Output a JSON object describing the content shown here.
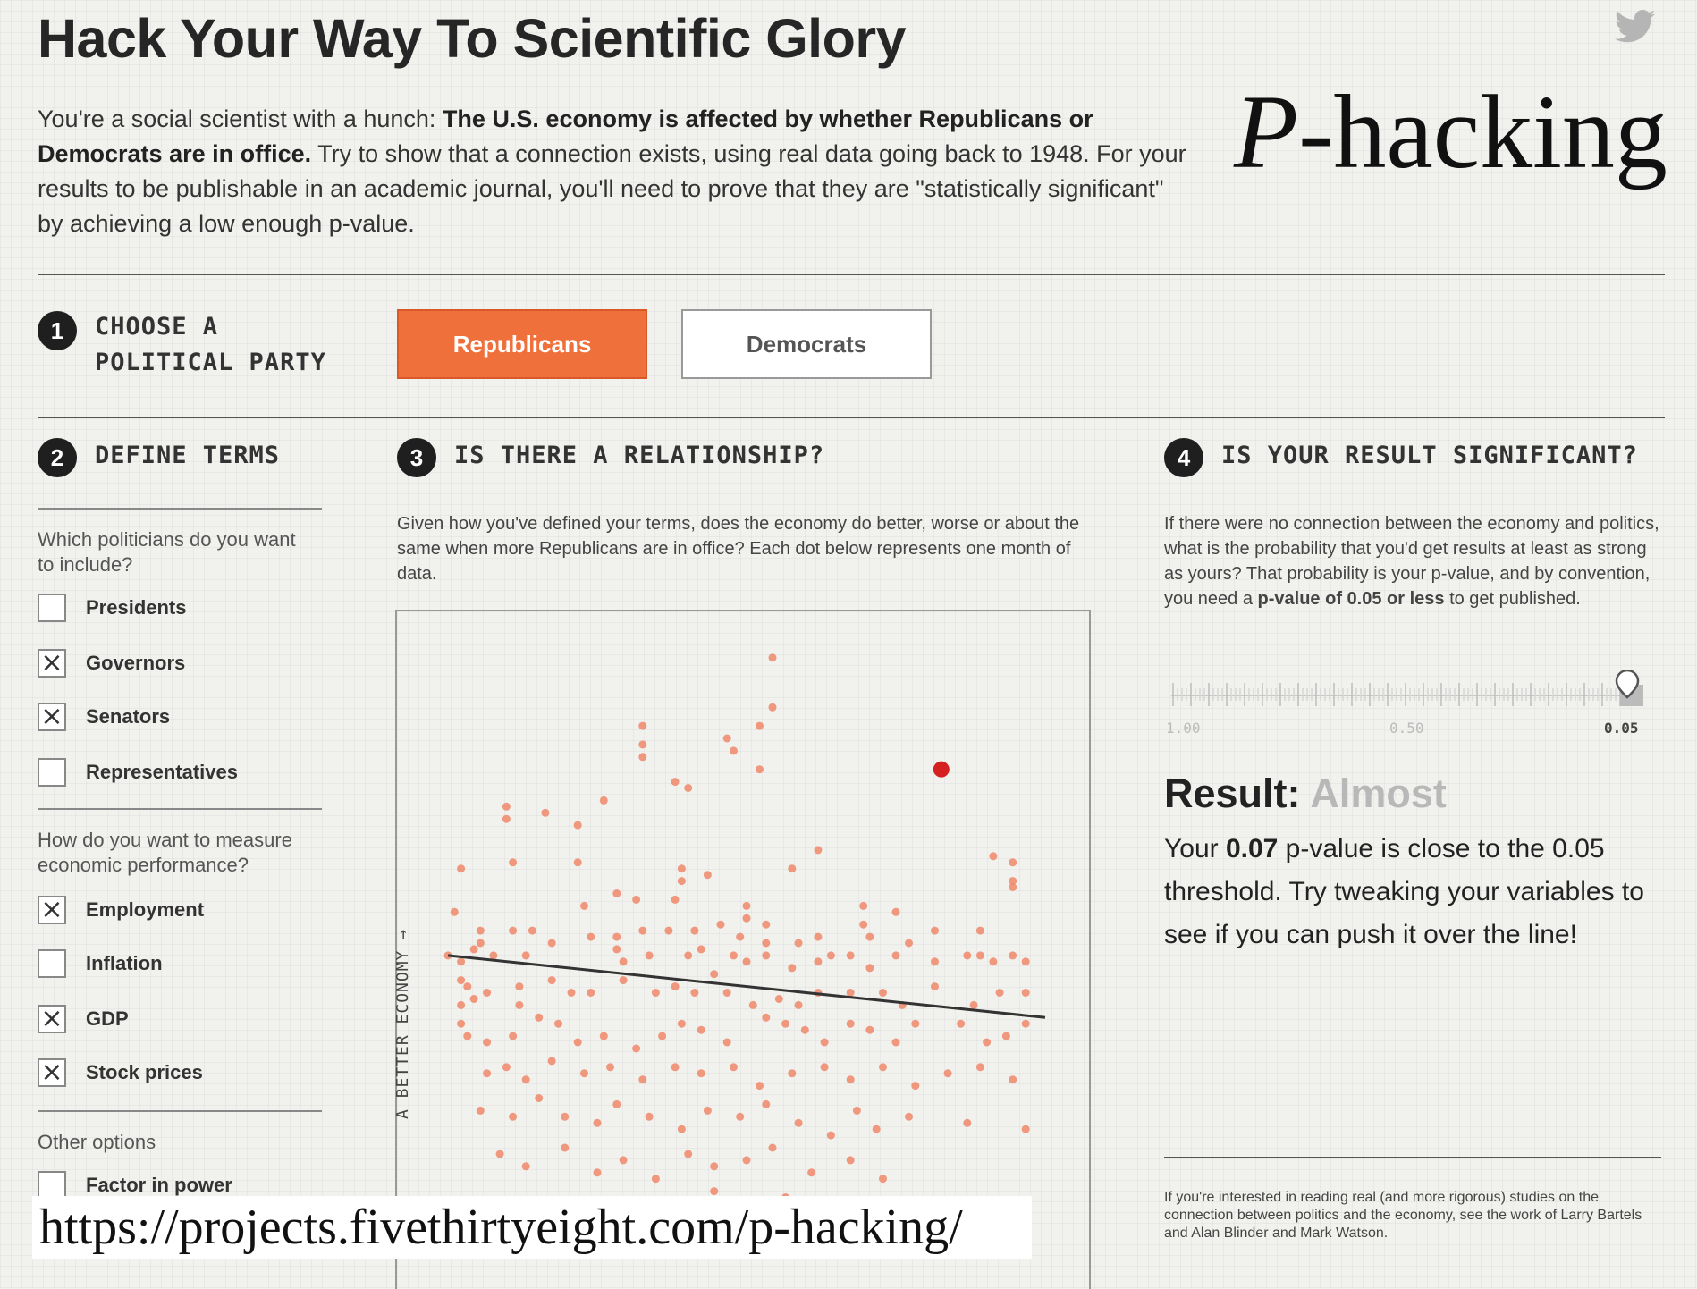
{
  "header": {
    "title": "Hack Your Way To Scientific Glory",
    "brand_italic": "P",
    "brand_rest": "-hacking",
    "intro": {
      "lead": "You're a social scientist with a hunch: ",
      "bold": "The U.S. economy is affected by whether Republicans or Democrats are in office.",
      "rest": " Try to show that a connection exists, using real data going back to 1948. For your results to be publishable in an academic journal, you'll need to prove that they are \"statistically significant\" by achieving a low enough p-value."
    }
  },
  "step1": {
    "number": "1",
    "label_line1": "CHOOSE A",
    "label_line2": "POLITICAL PARTY",
    "party_buttons": [
      "Republicans",
      "Democrats"
    ],
    "selected": "Republicans"
  },
  "step2": {
    "number": "2",
    "label": "DEFINE TERMS",
    "politicians_question": "Which politicians do you want to include?",
    "politicians": [
      {
        "label": "Presidents",
        "checked": false
      },
      {
        "label": "Governors",
        "checked": true
      },
      {
        "label": "Senators",
        "checked": true
      },
      {
        "label": "Representatives",
        "checked": false
      }
    ],
    "measure_question": "How do you want to measure economic performance?",
    "measures": [
      {
        "label": "Employment",
        "checked": true
      },
      {
        "label": "Inflation",
        "checked": false
      },
      {
        "label": "GDP",
        "checked": true
      },
      {
        "label": "Stock prices",
        "checked": true
      }
    ],
    "other_label": "Other options",
    "other_options": [
      {
        "label": "Factor in power",
        "checked": false
      }
    ]
  },
  "step3": {
    "number": "3",
    "label": "IS THERE A RELATIONSHIP?",
    "description": "Given how you've defined your terms, does the economy do better, worse or about the same when more Republicans are in office? Each dot below represents one month of data."
  },
  "chart_data": {
    "type": "scatter",
    "ylabel": "A BETTER ECONOMY →",
    "point_color": "#f0886a",
    "highlight_color": "#d42020",
    "line_color": "#333333",
    "trend": {
      "start": [
        0.04,
        0.52
      ],
      "end": [
        0.96,
        0.62
      ]
    },
    "highlight": [
      0.8,
      0.22
    ],
    "points": [
      [
        0.54,
        0.04
      ],
      [
        0.54,
        0.12
      ],
      [
        0.52,
        0.15
      ],
      [
        0.34,
        0.15
      ],
      [
        0.34,
        0.18
      ],
      [
        0.34,
        0.2
      ],
      [
        0.47,
        0.17
      ],
      [
        0.39,
        0.24
      ],
      [
        0.41,
        0.25
      ],
      [
        0.28,
        0.27
      ],
      [
        0.24,
        0.31
      ],
      [
        0.13,
        0.28
      ],
      [
        0.13,
        0.3
      ],
      [
        0.19,
        0.29
      ],
      [
        0.48,
        0.19
      ],
      [
        0.52,
        0.22
      ],
      [
        0.24,
        0.37
      ],
      [
        0.06,
        0.38
      ],
      [
        0.14,
        0.37
      ],
      [
        0.57,
        0.38
      ],
      [
        0.61,
        0.35
      ],
      [
        0.44,
        0.39
      ],
      [
        0.4,
        0.4
      ],
      [
        0.4,
        0.38
      ],
      [
        0.88,
        0.36
      ],
      [
        0.91,
        0.37
      ],
      [
        0.91,
        0.4
      ],
      [
        0.91,
        0.41
      ],
      [
        0.3,
        0.42
      ],
      [
        0.25,
        0.44
      ],
      [
        0.39,
        0.43
      ],
      [
        0.33,
        0.43
      ],
      [
        0.5,
        0.44
      ],
      [
        0.5,
        0.46
      ],
      [
        0.53,
        0.47
      ],
      [
        0.68,
        0.44
      ],
      [
        0.68,
        0.47
      ],
      [
        0.73,
        0.45
      ],
      [
        0.05,
        0.45
      ],
      [
        0.09,
        0.48
      ],
      [
        0.09,
        0.5
      ],
      [
        0.14,
        0.48
      ],
      [
        0.17,
        0.48
      ],
      [
        0.2,
        0.5
      ],
      [
        0.26,
        0.49
      ],
      [
        0.3,
        0.49
      ],
      [
        0.34,
        0.48
      ],
      [
        0.38,
        0.48
      ],
      [
        0.42,
        0.48
      ],
      [
        0.46,
        0.47
      ],
      [
        0.49,
        0.49
      ],
      [
        0.53,
        0.5
      ],
      [
        0.58,
        0.5
      ],
      [
        0.61,
        0.49
      ],
      [
        0.63,
        0.52
      ],
      [
        0.69,
        0.49
      ],
      [
        0.75,
        0.5
      ],
      [
        0.79,
        0.48
      ],
      [
        0.86,
        0.48
      ],
      [
        0.04,
        0.52
      ],
      [
        0.06,
        0.53
      ],
      [
        0.08,
        0.51
      ],
      [
        0.11,
        0.52
      ],
      [
        0.16,
        0.52
      ],
      [
        0.3,
        0.51
      ],
      [
        0.31,
        0.53
      ],
      [
        0.35,
        0.52
      ],
      [
        0.41,
        0.52
      ],
      [
        0.43,
        0.51
      ],
      [
        0.45,
        0.55
      ],
      [
        0.48,
        0.52
      ],
      [
        0.5,
        0.53
      ],
      [
        0.53,
        0.52
      ],
      [
        0.57,
        0.54
      ],
      [
        0.61,
        0.53
      ],
      [
        0.66,
        0.52
      ],
      [
        0.69,
        0.54
      ],
      [
        0.73,
        0.52
      ],
      [
        0.79,
        0.53
      ],
      [
        0.84,
        0.52
      ],
      [
        0.86,
        0.52
      ],
      [
        0.88,
        0.53
      ],
      [
        0.91,
        0.52
      ],
      [
        0.93,
        0.53
      ],
      [
        0.06,
        0.56
      ],
      [
        0.07,
        0.57
      ],
      [
        0.08,
        0.59
      ],
      [
        0.06,
        0.6
      ],
      [
        0.1,
        0.58
      ],
      [
        0.15,
        0.57
      ],
      [
        0.15,
        0.6
      ],
      [
        0.2,
        0.56
      ],
      [
        0.23,
        0.58
      ],
      [
        0.26,
        0.58
      ],
      [
        0.31,
        0.56
      ],
      [
        0.36,
        0.58
      ],
      [
        0.39,
        0.57
      ],
      [
        0.42,
        0.58
      ],
      [
        0.47,
        0.58
      ],
      [
        0.51,
        0.6
      ],
      [
        0.55,
        0.59
      ],
      [
        0.58,
        0.6
      ],
      [
        0.61,
        0.58
      ],
      [
        0.66,
        0.58
      ],
      [
        0.71,
        0.58
      ],
      [
        0.74,
        0.6
      ],
      [
        0.79,
        0.57
      ],
      [
        0.85,
        0.6
      ],
      [
        0.89,
        0.58
      ],
      [
        0.93,
        0.58
      ],
      [
        0.06,
        0.63
      ],
      [
        0.07,
        0.65
      ],
      [
        0.1,
        0.66
      ],
      [
        0.14,
        0.65
      ],
      [
        0.18,
        0.62
      ],
      [
        0.21,
        0.63
      ],
      [
        0.24,
        0.66
      ],
      [
        0.28,
        0.65
      ],
      [
        0.33,
        0.67
      ],
      [
        0.37,
        0.65
      ],
      [
        0.4,
        0.63
      ],
      [
        0.43,
        0.64
      ],
      [
        0.47,
        0.66
      ],
      [
        0.53,
        0.62
      ],
      [
        0.56,
        0.63
      ],
      [
        0.59,
        0.64
      ],
      [
        0.62,
        0.66
      ],
      [
        0.66,
        0.63
      ],
      [
        0.69,
        0.64
      ],
      [
        0.73,
        0.66
      ],
      [
        0.76,
        0.63
      ],
      [
        0.83,
        0.63
      ],
      [
        0.87,
        0.66
      ],
      [
        0.9,
        0.65
      ],
      [
        0.93,
        0.63
      ],
      [
        0.1,
        0.71
      ],
      [
        0.13,
        0.7
      ],
      [
        0.16,
        0.72
      ],
      [
        0.2,
        0.69
      ],
      [
        0.25,
        0.71
      ],
      [
        0.29,
        0.7
      ],
      [
        0.34,
        0.72
      ],
      [
        0.39,
        0.7
      ],
      [
        0.43,
        0.71
      ],
      [
        0.48,
        0.7
      ],
      [
        0.52,
        0.73
      ],
      [
        0.57,
        0.71
      ],
      [
        0.62,
        0.7
      ],
      [
        0.66,
        0.72
      ],
      [
        0.71,
        0.7
      ],
      [
        0.76,
        0.73
      ],
      [
        0.81,
        0.71
      ],
      [
        0.86,
        0.7
      ],
      [
        0.91,
        0.72
      ],
      [
        0.09,
        0.77
      ],
      [
        0.14,
        0.78
      ],
      [
        0.18,
        0.75
      ],
      [
        0.22,
        0.78
      ],
      [
        0.27,
        0.79
      ],
      [
        0.3,
        0.76
      ],
      [
        0.35,
        0.78
      ],
      [
        0.4,
        0.8
      ],
      [
        0.44,
        0.77
      ],
      [
        0.49,
        0.78
      ],
      [
        0.53,
        0.76
      ],
      [
        0.58,
        0.79
      ],
      [
        0.63,
        0.81
      ],
      [
        0.67,
        0.77
      ],
      [
        0.7,
        0.8
      ],
      [
        0.75,
        0.78
      ],
      [
        0.84,
        0.79
      ],
      [
        0.93,
        0.8
      ],
      [
        0.12,
        0.84
      ],
      [
        0.16,
        0.86
      ],
      [
        0.22,
        0.83
      ],
      [
        0.27,
        0.87
      ],
      [
        0.31,
        0.85
      ],
      [
        0.36,
        0.88
      ],
      [
        0.41,
        0.84
      ],
      [
        0.45,
        0.86
      ],
      [
        0.5,
        0.85
      ],
      [
        0.54,
        0.83
      ],
      [
        0.6,
        0.87
      ],
      [
        0.66,
        0.85
      ],
      [
        0.71,
        0.88
      ],
      [
        0.34,
        0.92
      ],
      [
        0.38,
        0.92
      ],
      [
        0.45,
        0.9
      ],
      [
        0.5,
        0.93
      ],
      [
        0.56,
        0.91
      ],
      [
        0.62,
        0.94
      ],
      [
        0.68,
        0.92
      ],
      [
        0.78,
        0.92
      ],
      [
        0.86,
        0.94
      ]
    ]
  },
  "step4": {
    "number": "4",
    "label": "IS YOUR RESULT SIGNIFICANT?",
    "description_start": "If there were no connection between the economy and politics, what is the probability that you'd get results at least as strong as yours? That probability is your p-value, and by convention, you need a ",
    "description_bold": "p-value of 0.05 or less",
    "description_end": " to get published.",
    "scale_labels": [
      "1.00",
      "0.50",
      "0.05"
    ],
    "pvalue": 0.07,
    "result_label": "Result:",
    "result_value": "Almost",
    "result_text_start": "Your ",
    "result_text_bold": "0.07",
    "result_text_end": " p-value is close to the 0.05 threshold. Try tweaking your variables to see if you can push it over the line!",
    "footnote": "If you're interested in reading real (and more rigorous) studies on the connection between politics and the economy, see the work of Larry Bartels and Alan Blinder and Mark Watson."
  },
  "overlay_url": "https://projects.fivethirtyeight.com/p-hacking/",
  "colors": {
    "accent": "#f0703b",
    "background": "#f1f1ee",
    "dark": "#1f1f1f",
    "muted_result": "#b8b8b8"
  }
}
